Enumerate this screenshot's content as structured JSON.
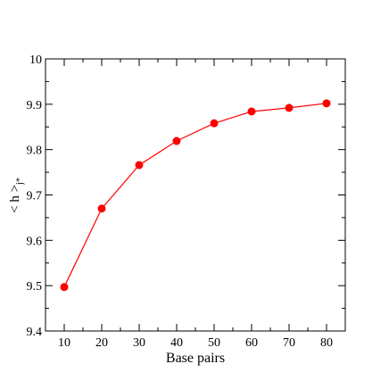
{
  "chart_data": {
    "type": "line",
    "title": "",
    "xlabel": "Base pairs",
    "ylabel": {
      "main": "< h >",
      "subscript": "j*"
    },
    "x": [
      10,
      20,
      30,
      40,
      50,
      60,
      70,
      80
    ],
    "series": [
      {
        "values": [
          9.497,
          9.67,
          9.766,
          9.819,
          9.858,
          9.884,
          9.892,
          9.902
        ],
        "color": "#ff0000",
        "marker": "circle"
      }
    ],
    "xlim": [
      5,
      85
    ],
    "ylim": [
      9.4,
      10.0
    ],
    "xticks": [
      "10",
      "20",
      "30",
      "40",
      "50",
      "60",
      "70",
      "80"
    ],
    "yticks": [
      "9.4",
      "9.5",
      "9.6",
      "9.7",
      "9.8",
      "9.9",
      "10"
    ],
    "grid": false,
    "legend": "none"
  }
}
